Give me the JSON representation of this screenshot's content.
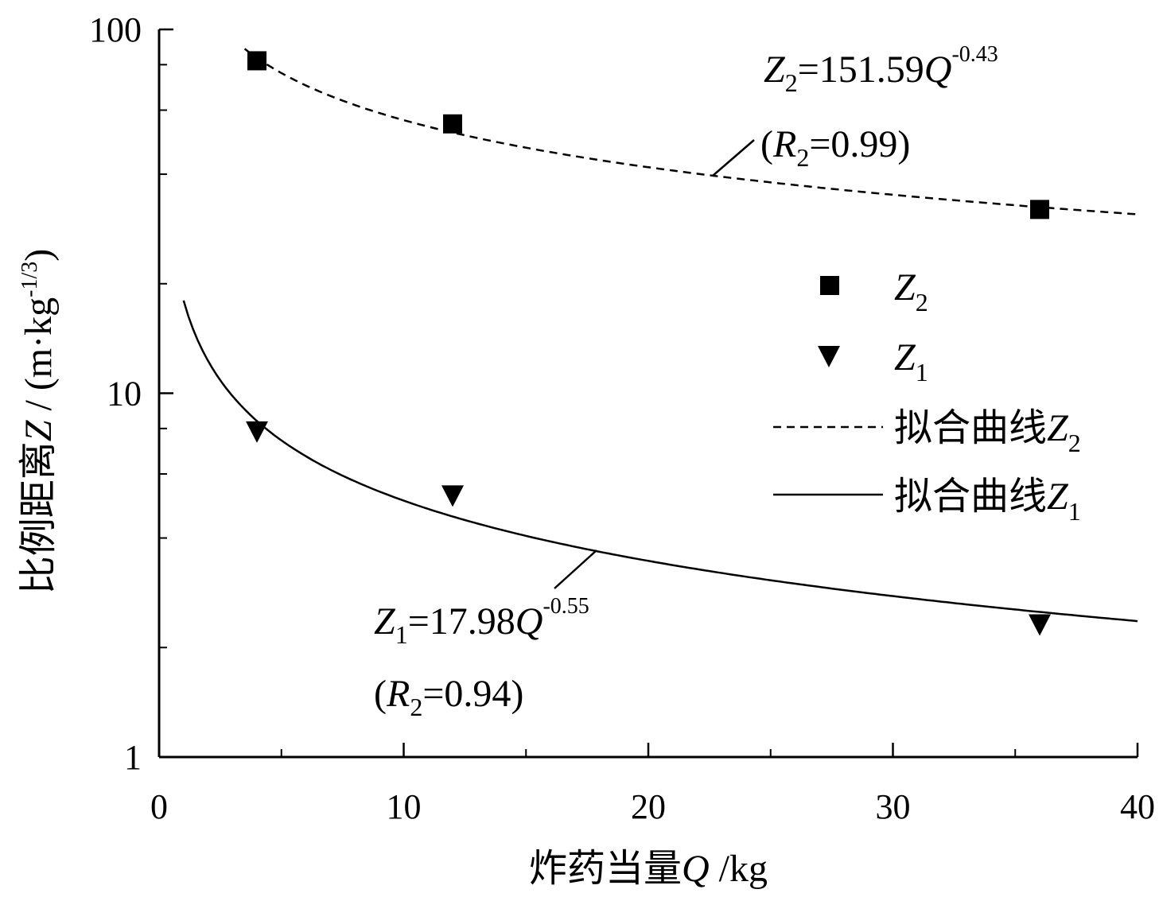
{
  "chart_data": {
    "type": "scatter",
    "xlabel": "炸药当量Q /kg",
    "ylabel": "比例距离Z / (m·kg-1/3)",
    "xlim": [
      0,
      40
    ],
    "ylim": [
      1,
      100
    ],
    "yscale": "log",
    "grid": false,
    "x_ticks": [
      0,
      10,
      20,
      30,
      40
    ],
    "y_ticks": [
      1,
      10,
      100
    ],
    "series": [
      {
        "name": "Z2",
        "marker": "square",
        "x": [
          4,
          12,
          36
        ],
        "y": [
          82,
          55,
          32
        ]
      },
      {
        "name": "Z1",
        "marker": "triangle-down",
        "x": [
          4,
          12,
          36
        ],
        "y": [
          7.8,
          5.2,
          2.3
        ]
      },
      {
        "name": "拟合曲线Z2",
        "line": "dashed",
        "equation": "Z2=151.59Q-0.43",
        "fit": {
          "a": 151.59,
          "b": -0.43
        },
        "x_range": [
          3.5,
          40
        ]
      },
      {
        "name": "拟合曲线Z1",
        "line": "solid",
        "equation": "Z1=17.98Q-0.55",
        "fit": {
          "a": 17.98,
          "b": -0.55
        },
        "x_range": [
          1,
          40
        ]
      }
    ],
    "annotations": [
      {
        "text": "Z2=151.59Q-0.43",
        "target": "拟合曲线Z2"
      },
      {
        "text": "(R2=0.99)",
        "target": "拟合曲线Z2"
      },
      {
        "text": "Z1=17.98Q-0.55",
        "target": "拟合曲线Z1"
      },
      {
        "text": "(R2=0.94)",
        "target": "拟合曲线Z1"
      }
    ],
    "legend": {
      "placement": "right"
    }
  },
  "labels": {
    "ylabel_main": "比例距离",
    "ylabel_var": "Z",
    "ylabel_unit": " / (m·kg",
    "ylabel_exp": "-1/3",
    "ylabel_close": ")",
    "xlabel_main": "炸药当量",
    "xlabel_var": "Q",
    "xlabel_unit": " /kg",
    "eq2_var": "Z",
    "eq2_sub": "2",
    "eq2_mid": "=151.59",
    "eq2_q": "Q",
    "eq2_exp": "-0.43",
    "r2_open": "(",
    "r2_var": "R",
    "r2_sub": "2",
    "r2_val": "=0.99)",
    "eq1_var": "Z",
    "eq1_sub": "1",
    "eq1_mid": "=17.98",
    "eq1_q": "Q",
    "eq1_exp": "-0.55",
    "r1_open": "(",
    "r1_var": "R",
    "r1_sub": "2",
    "r1_val": "=0.94)",
    "legend_z2_var": "Z",
    "legend_z2_sub": "2",
    "legend_z1_var": "Z",
    "legend_z1_sub": "1",
    "legend_fit2_text": "拟合曲线",
    "legend_fit2_var": "Z",
    "legend_fit2_sub": "2",
    "legend_fit1_text": "拟合曲线",
    "legend_fit1_var": "Z",
    "legend_fit1_sub": "1"
  }
}
